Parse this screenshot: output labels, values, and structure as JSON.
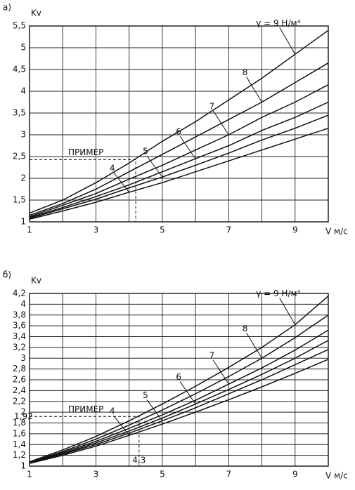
{
  "chart_data": [
    {
      "type": "line",
      "panel": "а)",
      "ylabel": "Kv",
      "xlabel": "V м/с",
      "x": [
        1,
        2,
        3,
        4,
        5,
        6,
        7,
        8,
        9,
        10
      ],
      "xlim": [
        1,
        10
      ],
      "xticks": [
        1,
        3,
        5,
        7,
        9
      ],
      "xminorticks": [
        2,
        4,
        6,
        8,
        10
      ],
      "ylim": [
        1,
        5.5
      ],
      "yticks": [
        1,
        {
          "value": 1.5,
          "label": "1,5"
        },
        2,
        {
          "value": 2.5,
          "label": "2,5"
        },
        3,
        {
          "value": 3.5,
          "label": "3,5"
        },
        4,
        {
          "value": 4.5,
          "label": "4,5"
        },
        5,
        {
          "value": 5.5,
          "label": "5,5"
        }
      ],
      "grid": true,
      "series": [
        {
          "name": "4",
          "color": "#111",
          "values": [
            1.06,
            1.25,
            1.45,
            1.68,
            1.9,
            2.15,
            2.4,
            2.65,
            2.9,
            3.15
          ]
        },
        {
          "name": "5",
          "color": "#111",
          "values": [
            1.08,
            1.3,
            1.52,
            1.78,
            2.03,
            2.3,
            2.58,
            2.88,
            3.15,
            3.45
          ]
        },
        {
          "name": "6",
          "color": "#111",
          "values": [
            1.1,
            1.33,
            1.58,
            1.85,
            2.15,
            2.45,
            2.75,
            3.1,
            3.4,
            3.75
          ]
        },
        {
          "name": "7",
          "color": "#111",
          "values": [
            1.12,
            1.38,
            1.65,
            1.98,
            2.3,
            2.65,
            3.0,
            3.4,
            3.75,
            4.15
          ]
        },
        {
          "name": "8",
          "color": "#111",
          "values": [
            1.15,
            1.42,
            1.75,
            2.15,
            2.55,
            2.95,
            3.35,
            3.75,
            4.2,
            4.65
          ]
        },
        {
          "name": "γ = 9 Н/м³",
          "color": "#111",
          "values": [
            1.2,
            1.5,
            1.9,
            2.35,
            2.85,
            3.3,
            3.8,
            4.3,
            4.85,
            5.4
          ]
        }
      ],
      "example": {
        "label": "ПРИМЕР",
        "x": 4.2,
        "y": 2.43
      }
    },
    {
      "type": "line",
      "panel": "б)",
      "ylabel": "Kv",
      "xlabel": "V м/с",
      "x": [
        1,
        2,
        3,
        4,
        5,
        6,
        7,
        8,
        9,
        10
      ],
      "xlim": [
        1,
        10
      ],
      "xticks": [
        1,
        3,
        5,
        7,
        9
      ],
      "xminorticks": [
        2,
        4,
        6,
        8,
        10
      ],
      "ylim": [
        1,
        4.2
      ],
      "yticks": [
        1,
        {
          "value": 1.2,
          "label": "1,2"
        },
        {
          "value": 1.4,
          "label": "1,4"
        },
        {
          "value": 1.6,
          "label": "1,6"
        },
        {
          "value": 1.8,
          "label": "1,8"
        },
        2,
        {
          "value": 2.2,
          "label": "2,2"
        },
        {
          "value": 2.4,
          "label": "2,4"
        },
        {
          "value": 2.6,
          "label": "2,6"
        },
        {
          "value": 2.8,
          "label": "2,8"
        },
        3,
        {
          "value": 3.2,
          "label": "3,2"
        },
        {
          "value": 3.4,
          "label": "3,4"
        },
        {
          "value": 3.6,
          "label": "3,6"
        },
        {
          "value": 3.8,
          "label": "3,8"
        },
        4,
        {
          "value": 4.2,
          "label": "4,2"
        }
      ],
      "grid": true,
      "series": [
        {
          "name": "4",
          "color": "#111",
          "values": [
            1.05,
            1.2,
            1.37,
            1.57,
            1.78,
            2.0,
            2.23,
            2.47,
            2.72,
            2.98
          ]
        },
        {
          "name": "5",
          "color": "#111",
          "values": [
            1.06,
            1.22,
            1.4,
            1.61,
            1.84,
            2.08,
            2.34,
            2.6,
            2.88,
            3.16
          ]
        },
        {
          "name": "6",
          "color": "#111",
          "values": [
            1.06,
            1.23,
            1.43,
            1.65,
            1.89,
            2.15,
            2.42,
            2.7,
            3.0,
            3.33
          ]
        },
        {
          "name": "7",
          "color": "#111",
          "values": [
            1.07,
            1.25,
            1.46,
            1.7,
            1.95,
            2.22,
            2.52,
            2.82,
            3.15,
            3.52
          ]
        },
        {
          "name": "8",
          "color": "#111",
          "values": [
            1.07,
            1.27,
            1.5,
            1.76,
            2.04,
            2.34,
            2.66,
            3.0,
            3.38,
            3.8
          ]
        },
        {
          "name": "γ = 9 Н/м³",
          "color": "#111",
          "values": [
            1.08,
            1.3,
            1.55,
            1.84,
            2.15,
            2.48,
            2.83,
            3.2,
            3.62,
            4.15
          ]
        }
      ],
      "example": {
        "label": "ПРИМЕР",
        "x": {
          "value": 4.3,
          "label": "4,3"
        },
        "y": {
          "value": 1.92,
          "label": "1,92"
        }
      }
    }
  ]
}
